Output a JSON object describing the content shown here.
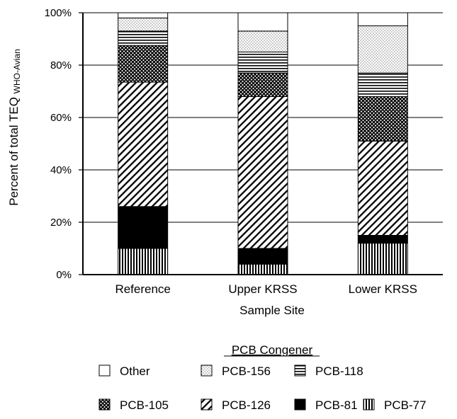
{
  "chart_data": {
    "type": "bar",
    "stacked": true,
    "title": "",
    "xlabel": "Sample Site",
    "ylabel_main": "Percent of total TEQ",
    "ylabel_sub": "WHO-Avian",
    "ylim": [
      0,
      100
    ],
    "yticks": [
      "0%",
      "20%",
      "40%",
      "60%",
      "80%",
      "100%"
    ],
    "grid": "horizontal",
    "legend_title": "PCB Congener",
    "legend_position": "bottom",
    "categories": [
      "Reference",
      "Upper KRSS",
      "Lower KRSS"
    ],
    "series": [
      {
        "name": "PCB-77",
        "pattern": "vertical-lines",
        "values": [
          10,
          4,
          12
        ]
      },
      {
        "name": "PCB-81",
        "pattern": "solid-black",
        "values": [
          16,
          6,
          3
        ]
      },
      {
        "name": "PCB-126",
        "pattern": "diagonal-lines",
        "values": [
          47.5,
          58,
          36
        ]
      },
      {
        "name": "PCB-105",
        "pattern": "crosshatch",
        "values": [
          14,
          9,
          17
        ]
      },
      {
        "name": "PCB-118",
        "pattern": "horizontal-lines",
        "values": [
          5.5,
          8,
          9
        ]
      },
      {
        "name": "PCB-156",
        "pattern": "dots",
        "values": [
          5,
          8,
          18
        ]
      },
      {
        "name": "Other",
        "pattern": "white",
        "values": [
          2,
          7,
          5
        ]
      }
    ],
    "legend_order": [
      "Other",
      "PCB-156",
      "PCB-118",
      "PCB-105",
      "PCB-126",
      "PCB-81",
      "PCB-77"
    ]
  }
}
